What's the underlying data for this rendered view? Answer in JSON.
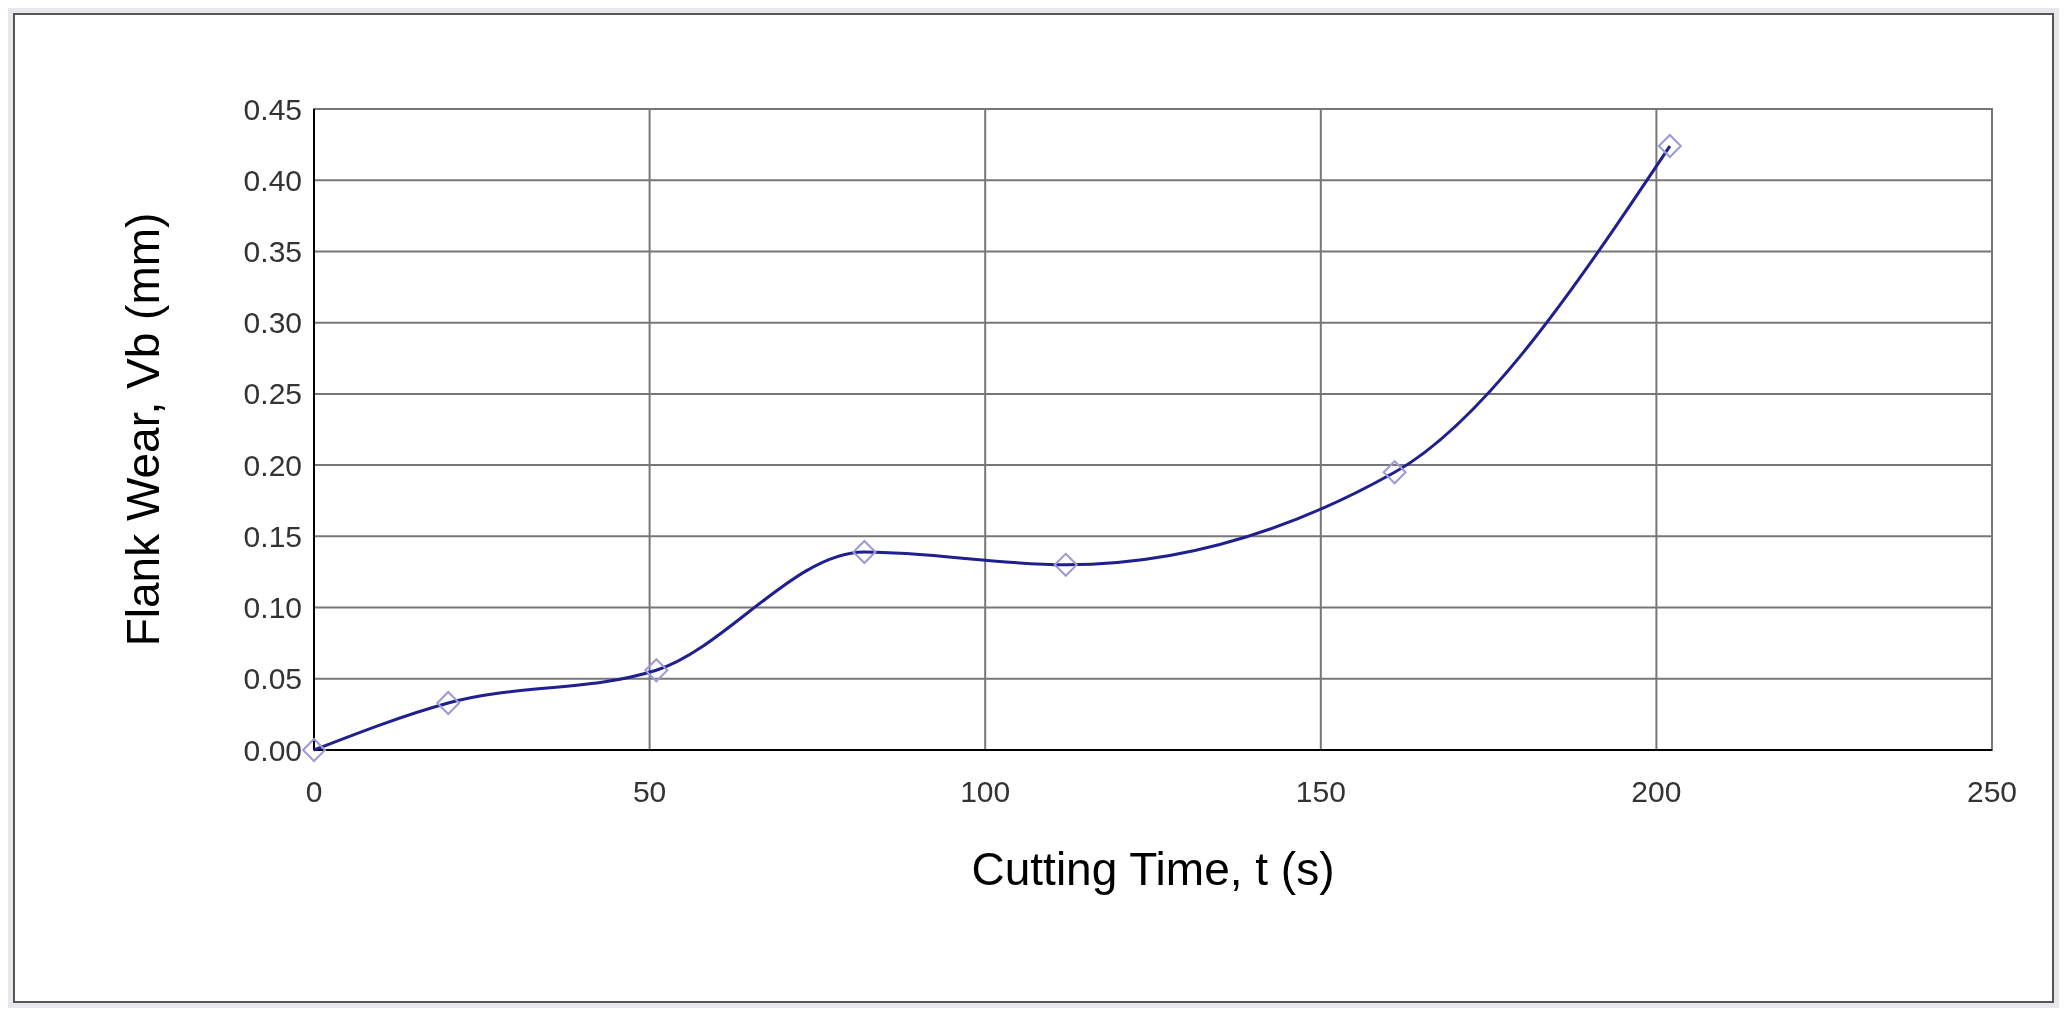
{
  "chart_data": {
    "type": "line",
    "xlabel": "Cutting Time, t (s)",
    "ylabel": "Flank Wear, Vb (mm)",
    "x": [
      0,
      20,
      51,
      82,
      112,
      161,
      202
    ],
    "series": [
      {
        "color": "#1f1f8f",
        "values": [
          0,
          0.033,
          0.056,
          0.139,
          0.13,
          0.195,
          0.424
        ]
      }
    ],
    "xlim": [
      0,
      250
    ],
    "xticks": [
      0,
      50,
      100,
      150,
      200,
      250
    ],
    "ylim": [
      0,
      0.45
    ],
    "yticks": [
      {
        "value": 0,
        "label": "0.00"
      },
      {
        "value": 0.05,
        "label": "0.05"
      },
      {
        "value": 0.1,
        "label": "0.10"
      },
      {
        "value": 0.15,
        "label": "0.15"
      },
      {
        "value": 0.2,
        "label": "0.20"
      },
      {
        "value": 0.25,
        "label": "0.25"
      },
      {
        "value": 0.3,
        "label": "0.30"
      },
      {
        "value": 0.35,
        "label": "0.35"
      },
      {
        "value": 0.4,
        "label": "0.40"
      },
      {
        "value": 0.45,
        "label": "0.45"
      }
    ],
    "grid": true,
    "marker": "diamond",
    "line_style": "solid"
  }
}
